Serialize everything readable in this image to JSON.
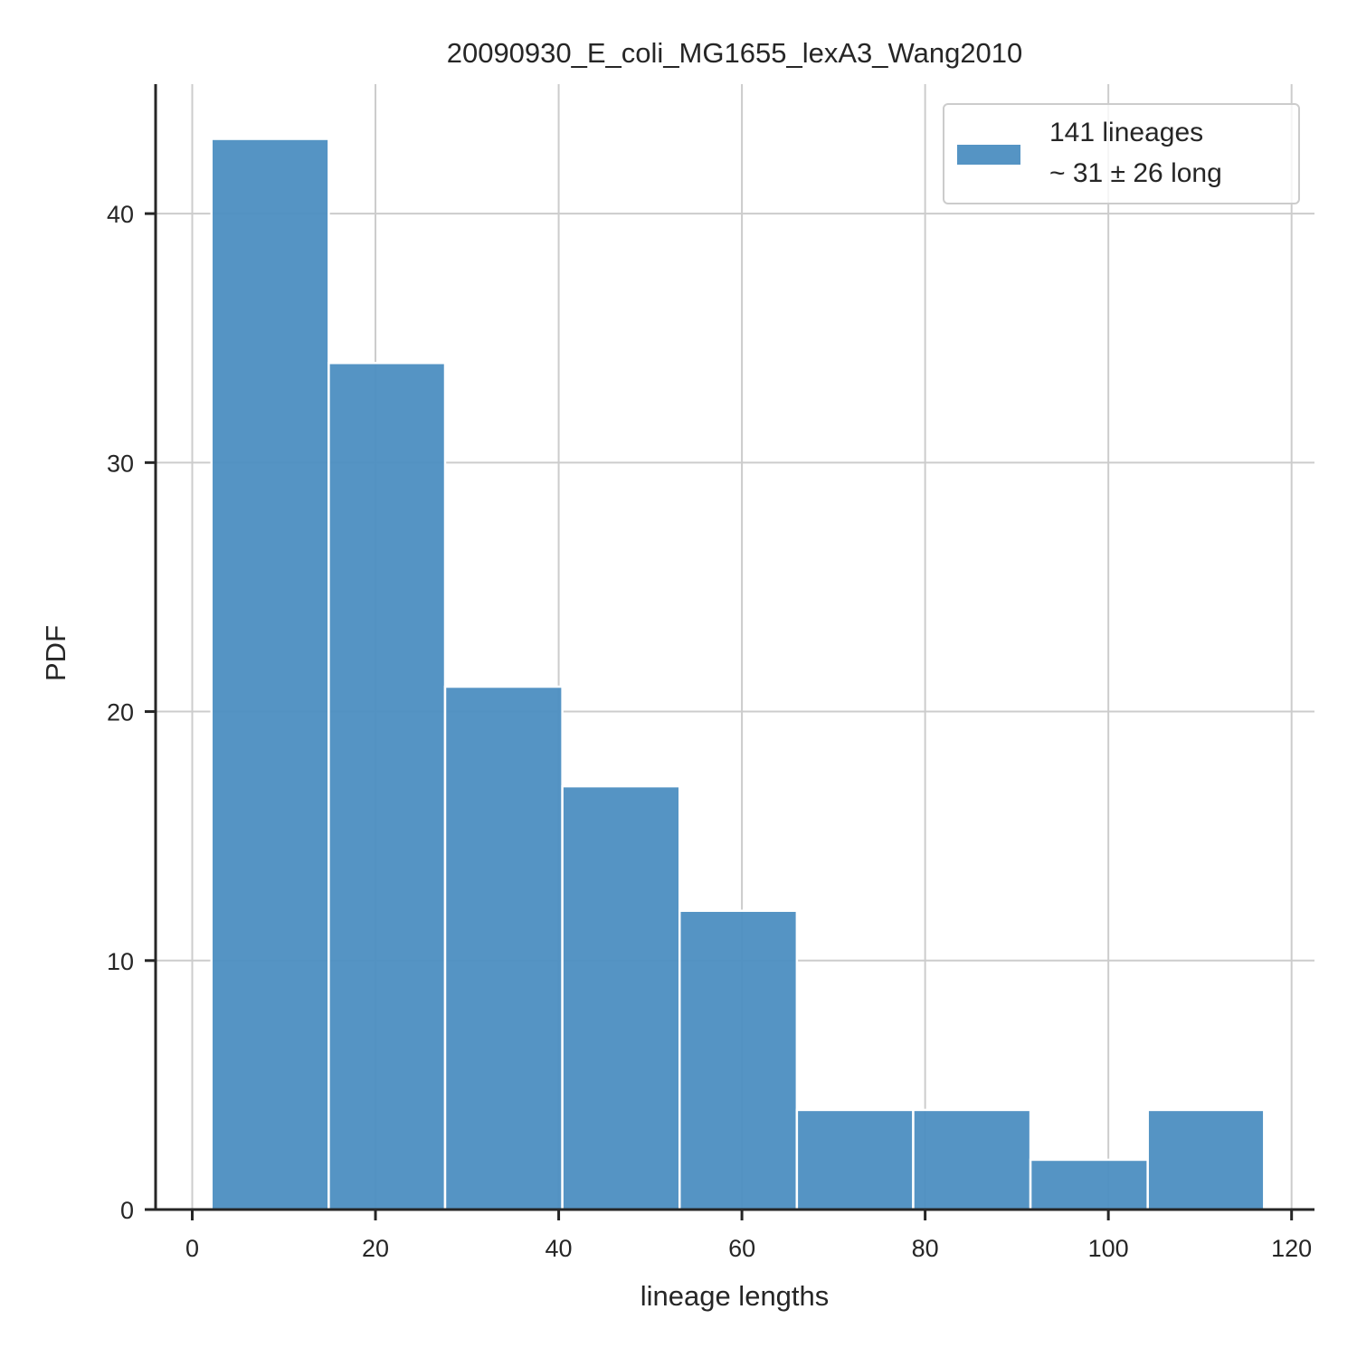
{
  "chart_data": {
    "type": "bar",
    "title": "20090930_E_coli_MG1655_lexA3_Wang2010",
    "xlabel": "lineage lengths",
    "ylabel": "PDF",
    "xlim": [
      -4,
      122.5
    ],
    "ylim": [
      0,
      45.2
    ],
    "xticks": [
      0,
      20,
      40,
      60,
      80,
      100,
      120
    ],
    "xtick_labels": [
      "0",
      "20",
      "40",
      "60",
      "80",
      "100",
      "120"
    ],
    "yticks": [
      0,
      10,
      20,
      30,
      40
    ],
    "ytick_labels": [
      "0",
      "10",
      "20",
      "30",
      "40"
    ],
    "grid": true,
    "legend_position": "top-right",
    "bar_color": "#4c8ec1",
    "series": [
      {
        "name": "141 lineages\n ~ 31 ± 26 long",
        "bins": [
          {
            "start": 2.1,
            "end": 14.9,
            "value": 43
          },
          {
            "start": 14.9,
            "end": 27.6,
            "value": 34
          },
          {
            "start": 27.6,
            "end": 40.4,
            "value": 21
          },
          {
            "start": 40.4,
            "end": 53.2,
            "value": 17
          },
          {
            "start": 53.2,
            "end": 66.0,
            "value": 12
          },
          {
            "start": 66.0,
            "end": 78.7,
            "value": 4
          },
          {
            "start": 78.7,
            "end": 91.5,
            "value": 4
          },
          {
            "start": 91.5,
            "end": 104.3,
            "value": 2
          },
          {
            "start": 104.3,
            "end": 117.0,
            "value": 4
          }
        ]
      }
    ],
    "legend": {
      "line1": "141 lineages",
      "line2": " ~ 31 ± 26 long"
    }
  }
}
